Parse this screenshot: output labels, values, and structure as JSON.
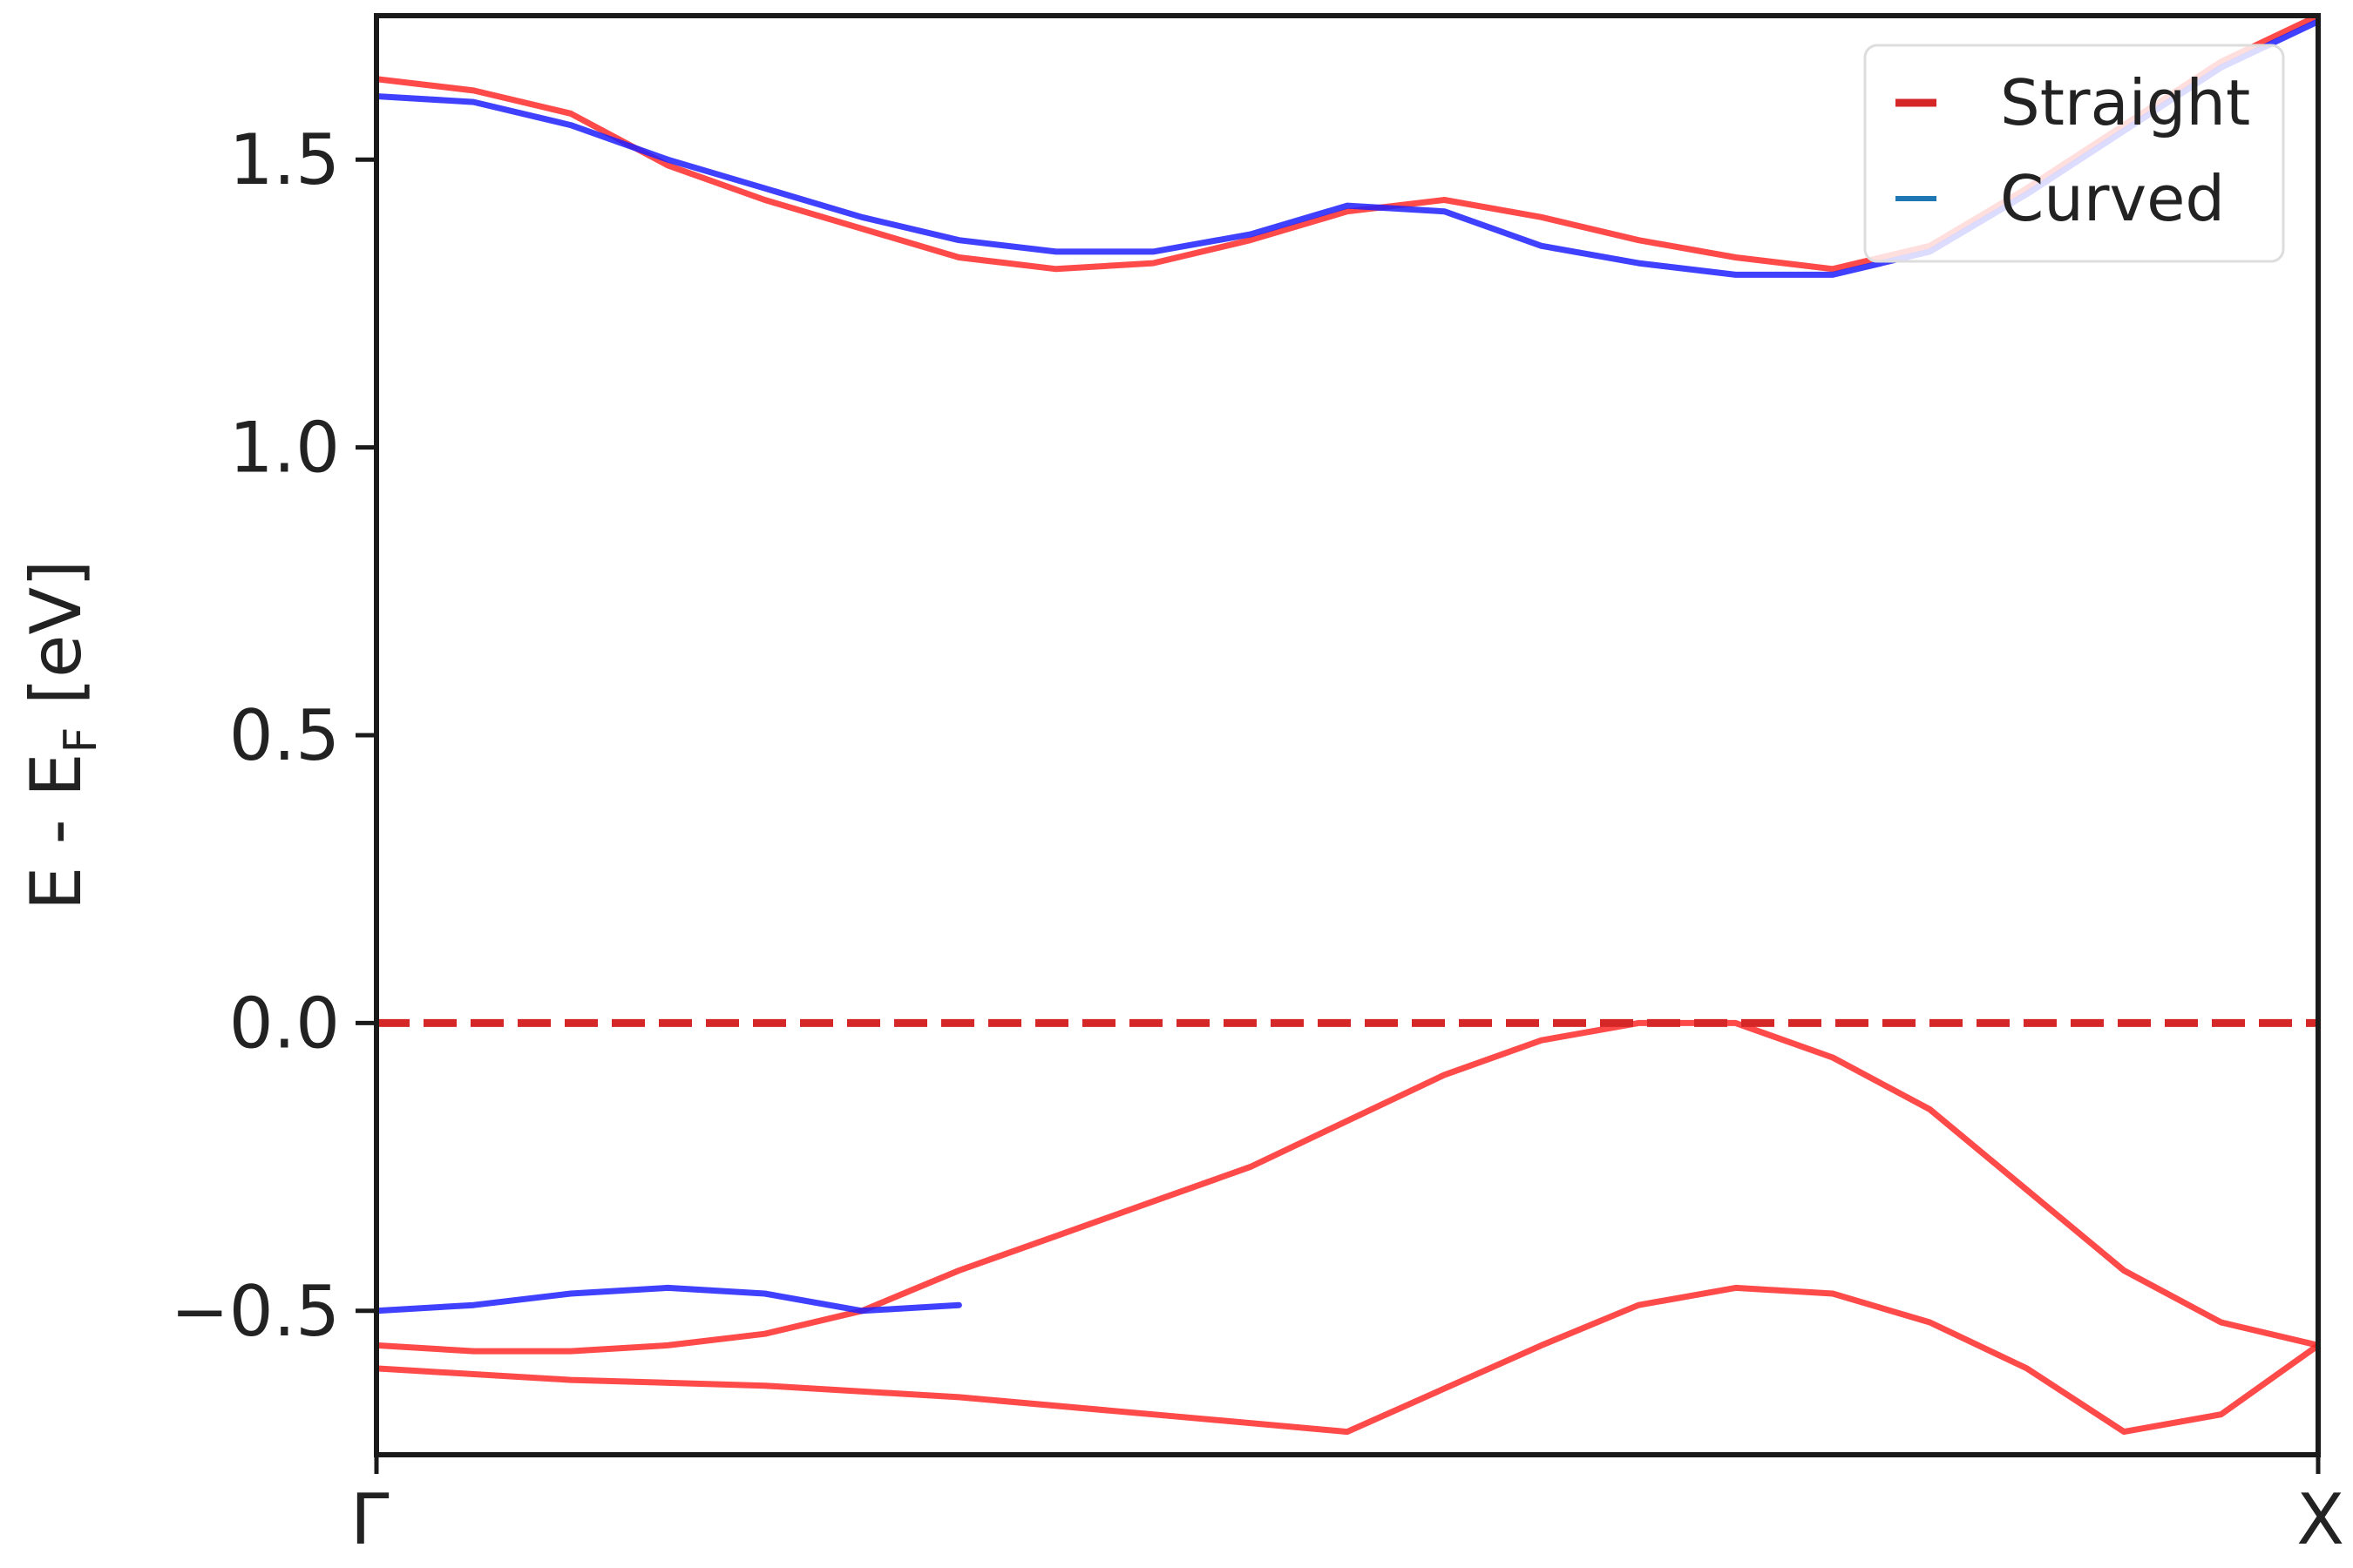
{
  "chart_data": {
    "type": "line",
    "title": "",
    "ylabel": {
      "base": "E - E",
      "subscript": "F",
      "unit": " [eV]"
    },
    "xlabel": "",
    "x_ticks": [
      {
        "label": "Γ",
        "k": 0.0
      },
      {
        "label": "X",
        "k": 1.0
      }
    ],
    "y_ticks": [
      -0.5,
      0.0,
      0.5,
      1.0,
      1.5
    ],
    "y_tick_labels": [
      "−0.5",
      "0.0",
      "0.5",
      "1.0",
      "1.5"
    ],
    "xlim": [
      0,
      1
    ],
    "ylim": [
      -0.75,
      1.75
    ],
    "grid": false,
    "legend": {
      "position": "top-right",
      "entries": [
        {
          "label": "Straight",
          "color": "#d62728"
        },
        {
          "label": "Curved",
          "color": "#1f77b4"
        }
      ]
    },
    "fermi_level": {
      "y": 0.0,
      "color": "#d62728",
      "style": "dashed"
    },
    "series": [
      {
        "name": "Straight",
        "color": "#ff2a2a",
        "band": "conduction-min",
        "x": [
          0,
          0.05,
          0.1,
          0.15,
          0.2,
          0.25,
          0.3,
          0.35,
          0.4,
          0.45,
          0.5,
          0.55,
          0.6,
          0.65,
          0.7,
          0.75,
          0.8,
          0.85,
          0.9,
          0.95,
          1.0
        ],
        "y": [
          1.64,
          1.62,
          1.58,
          1.49,
          1.43,
          1.38,
          1.33,
          1.31,
          1.32,
          1.36,
          1.41,
          1.43,
          1.4,
          1.36,
          1.33,
          1.31,
          1.35,
          1.45,
          1.56,
          1.67,
          1.75
        ]
      },
      {
        "name": "Curved",
        "color": "#1f1fff",
        "band": "conduction-min",
        "x": [
          0,
          0.05,
          0.1,
          0.15,
          0.2,
          0.25,
          0.3,
          0.35,
          0.4,
          0.45,
          0.5,
          0.55,
          0.6,
          0.65,
          0.7,
          0.75,
          0.8,
          0.85,
          0.9,
          0.95,
          1.0
        ],
        "y": [
          1.61,
          1.6,
          1.56,
          1.5,
          1.45,
          1.4,
          1.36,
          1.34,
          1.34,
          1.37,
          1.42,
          1.41,
          1.35,
          1.32,
          1.3,
          1.3,
          1.34,
          1.44,
          1.55,
          1.66,
          1.74
        ]
      },
      {
        "name": "Straight",
        "color": "#ff2a2a",
        "band": "valence-max",
        "x": [
          0,
          0.05,
          0.1,
          0.15,
          0.2,
          0.25,
          0.3,
          0.35,
          0.4,
          0.45,
          0.5,
          0.55,
          0.6,
          0.65,
          0.7,
          0.75,
          0.8,
          0.85,
          0.9,
          0.95,
          1.0
        ],
        "y": [
          -0.56,
          -0.57,
          -0.57,
          -0.56,
          -0.54,
          -0.5,
          -0.43,
          -0.37,
          -0.31,
          -0.25,
          -0.17,
          -0.09,
          -0.03,
          0.0,
          0.0,
          -0.06,
          -0.15,
          -0.29,
          -0.43,
          -0.52,
          -0.56
        ]
      },
      {
        "name": "Curved",
        "color": "#1f1fff",
        "band": "valence-max",
        "x": [
          0,
          0.05,
          0.1,
          0.15,
          0.2,
          0.25,
          0.3
        ],
        "y": [
          -0.5,
          -0.49,
          -0.47,
          -0.46,
          -0.47,
          -0.5,
          -0.49
        ]
      },
      {
        "name": "Straight",
        "color": "#ff2a2a",
        "band": "upper-valence",
        "x": [
          0,
          0.1,
          0.2,
          0.3,
          0.4,
          0.5,
          0.6,
          0.65,
          0.7,
          0.75,
          0.8,
          0.85,
          0.9,
          0.95,
          1.0
        ],
        "y": [
          -0.6,
          -0.62,
          -0.63,
          -0.65,
          -0.68,
          -0.71,
          -0.56,
          -0.49,
          -0.46,
          -0.47,
          -0.52,
          -0.6,
          -0.71,
          -0.68,
          -0.56
        ]
      }
    ]
  }
}
